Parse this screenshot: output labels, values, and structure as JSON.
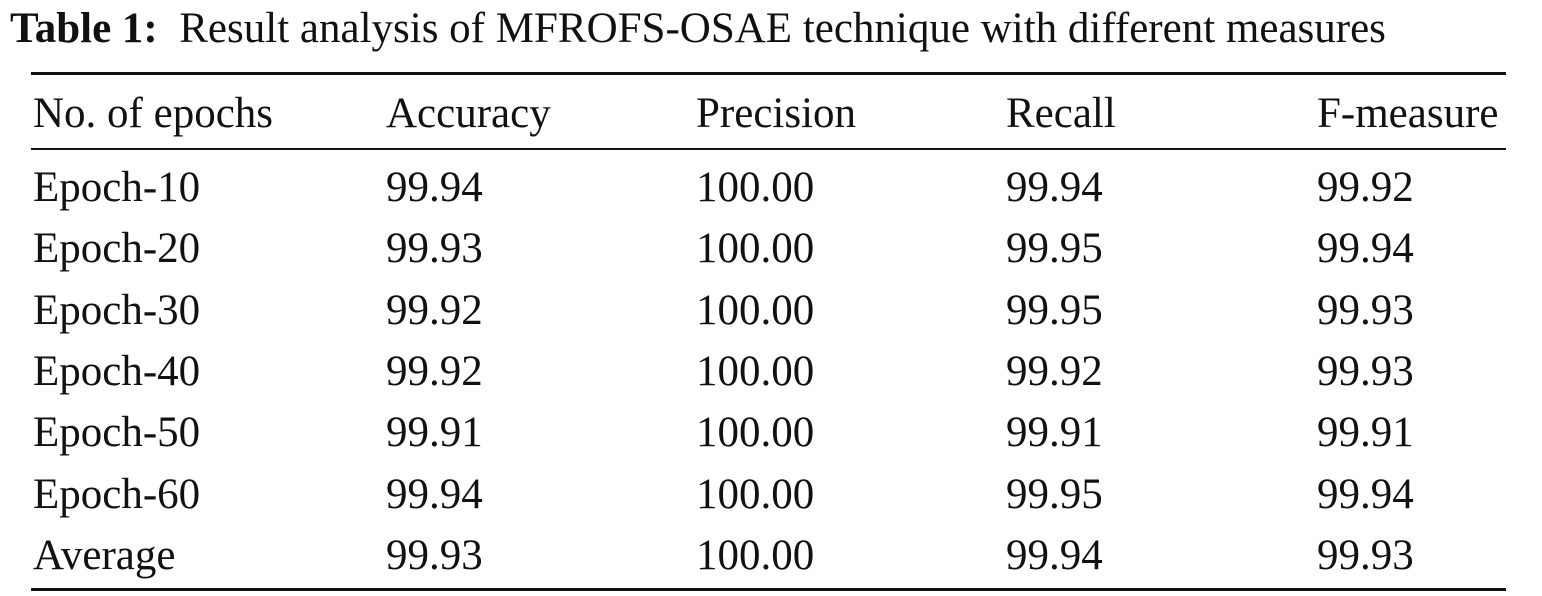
{
  "caption": {
    "label": "Table 1:",
    "text": "Result analysis of MFROFS-OSAE technique with different measures"
  },
  "table": {
    "headers": [
      "No. of epochs",
      "Accuracy",
      "Precision",
      "Recall",
      "F-measure"
    ],
    "rows": [
      [
        "Epoch-10",
        "99.94",
        "100.00",
        "99.94",
        "99.92"
      ],
      [
        "Epoch-20",
        "99.93",
        "100.00",
        "99.95",
        "99.94"
      ],
      [
        "Epoch-30",
        "99.92",
        "100.00",
        "99.95",
        "99.93"
      ],
      [
        "Epoch-40",
        "99.92",
        "100.00",
        "99.92",
        "99.93"
      ],
      [
        "Epoch-50",
        "99.91",
        "100.00",
        "99.91",
        "99.91"
      ],
      [
        "Epoch-60",
        "99.94",
        "100.00",
        "99.95",
        "99.94"
      ],
      [
        "Average",
        "99.93",
        "100.00",
        "99.94",
        "99.93"
      ]
    ]
  }
}
